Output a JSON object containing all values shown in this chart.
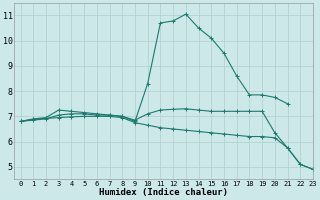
{
  "xlabel": "Humidex (Indice chaleur)",
  "bg_color": "#cce8e8",
  "grid_color": "#b0cccc",
  "line_color": "#1a7a6e",
  "xlim": [
    -0.5,
    23
  ],
  "ylim": [
    4.5,
    11.5
  ],
  "xticks": [
    0,
    1,
    2,
    3,
    4,
    5,
    6,
    7,
    8,
    9,
    10,
    11,
    12,
    13,
    14,
    15,
    16,
    17,
    18,
    19,
    20,
    21,
    22,
    23
  ],
  "yticks": [
    5,
    6,
    7,
    8,
    9,
    10,
    11
  ],
  "curve1_x": [
    0,
    1,
    2,
    3,
    4,
    5,
    6,
    7,
    8,
    9,
    10,
    11,
    12,
    13,
    14,
    15,
    16,
    17,
    18,
    19,
    20,
    21
  ],
  "curve1_y": [
    6.8,
    6.9,
    6.95,
    7.25,
    7.2,
    7.15,
    7.1,
    7.05,
    7.0,
    6.8,
    8.3,
    10.7,
    10.78,
    11.05,
    10.5,
    10.1,
    9.5,
    8.6,
    7.85,
    7.85,
    7.75,
    7.5
  ],
  "curve2_x": [
    0,
    1,
    2,
    3,
    4,
    5,
    6,
    7,
    8,
    9,
    10,
    11,
    12,
    13,
    14,
    15,
    16,
    17,
    18,
    19,
    20,
    21,
    22,
    23
  ],
  "curve2_y": [
    6.8,
    6.88,
    6.92,
    6.95,
    6.98,
    7.0,
    7.0,
    7.0,
    6.95,
    6.75,
    6.65,
    6.55,
    6.5,
    6.45,
    6.4,
    6.35,
    6.3,
    6.25,
    6.2,
    6.2,
    6.15,
    5.75,
    5.1,
    4.9
  ],
  "curve3_x": [
    0,
    1,
    2,
    3,
    4,
    5,
    6,
    7,
    8,
    9,
    10,
    11,
    12,
    13,
    14,
    15,
    16,
    17,
    18,
    19,
    20,
    21,
    22,
    23
  ],
  "curve3_y": [
    6.8,
    6.85,
    6.9,
    7.05,
    7.1,
    7.1,
    7.05,
    7.05,
    7.0,
    6.85,
    7.1,
    7.25,
    7.28,
    7.3,
    7.25,
    7.2,
    7.2,
    7.2,
    7.2,
    7.2,
    6.35,
    5.75,
    5.1,
    4.9
  ],
  "tick_fontsize": 5.0,
  "xlabel_fontsize": 6.5
}
